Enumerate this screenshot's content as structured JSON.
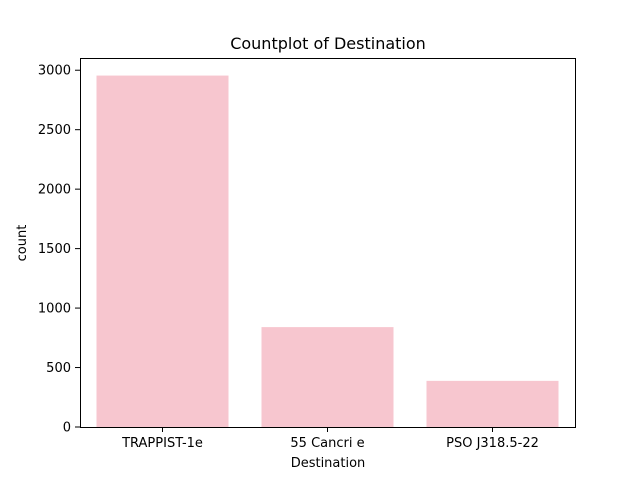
{
  "chart_data": {
    "type": "bar",
    "title": "Countplot of Destination",
    "xlabel": "Destination",
    "ylabel": "count",
    "categories": [
      "TRAPPIST-1e",
      "55 Cancri e",
      "PSO J318.5-22"
    ],
    "values": [
      2955,
      840,
      388
    ],
    "ylim": [
      0,
      3102.75
    ],
    "yticks": [
      0,
      500,
      1000,
      1500,
      2000,
      2500,
      3000
    ],
    "ytick_labels": [
      "0",
      "500",
      "1000",
      "1500",
      "2000",
      "2500",
      "3000"
    ],
    "bar_color": "#f7c6cf",
    "grid": false,
    "legend": "none"
  }
}
